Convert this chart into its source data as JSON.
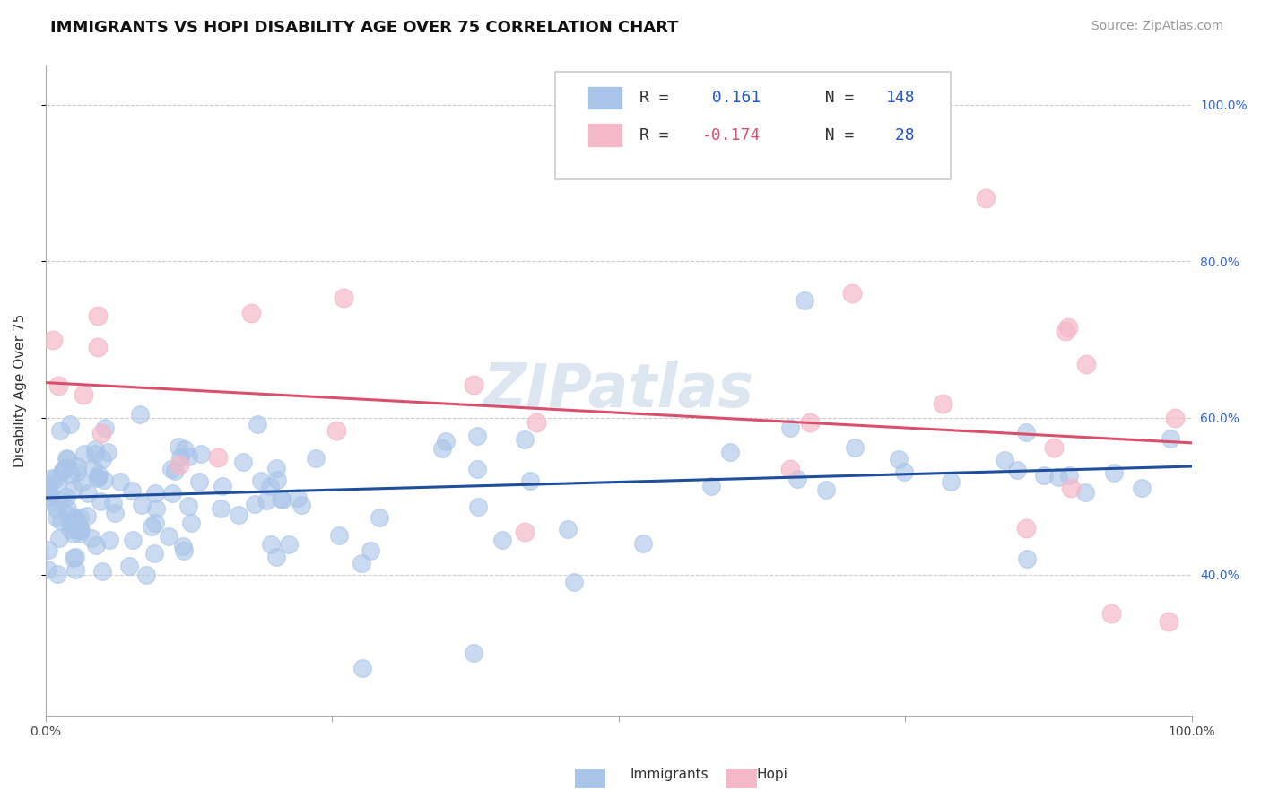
{
  "title": "IMMIGRANTS VS HOPI DISABILITY AGE OVER 75 CORRELATION CHART",
  "source": "Source: ZipAtlas.com",
  "ylabel": "Disability Age Over 75",
  "xlim": [
    0.0,
    1.0
  ],
  "ylim": [
    0.22,
    1.05
  ],
  "yticks": [
    0.4,
    0.6,
    0.8,
    1.0
  ],
  "ytick_labels": [
    "40.0%",
    "60.0%",
    "80.0%",
    "100.0%"
  ],
  "xtick_positions": [
    0.0,
    0.25,
    0.5,
    0.75,
    1.0
  ],
  "xtick_labels": [
    "0.0%",
    "",
    "",
    "",
    "100.0%"
  ],
  "immigrants_color": "#a8c4e8",
  "hopi_color": "#f5b8c8",
  "immigrants_line_color": "#1f4e9c",
  "hopi_line_color": "#d94f6e",
  "background_color": "#ffffff",
  "grid_color": "#cccccc",
  "legend_R1": "0.161",
  "legend_N1": "148",
  "legend_R2": "-0.174",
  "legend_N2": "28",
  "watermark": "ZIPatlas",
  "title_fontsize": 13,
  "axis_label_fontsize": 11,
  "tick_fontsize": 10,
  "source_fontsize": 10,
  "imm_trend_x0": 0.0,
  "imm_trend_x1": 1.0,
  "imm_trend_y0": 0.498,
  "imm_trend_y1": 0.538,
  "hopi_trend_x0": 0.0,
  "hopi_trend_x1": 1.0,
  "hopi_trend_y0": 0.645,
  "hopi_trend_y1": 0.568
}
